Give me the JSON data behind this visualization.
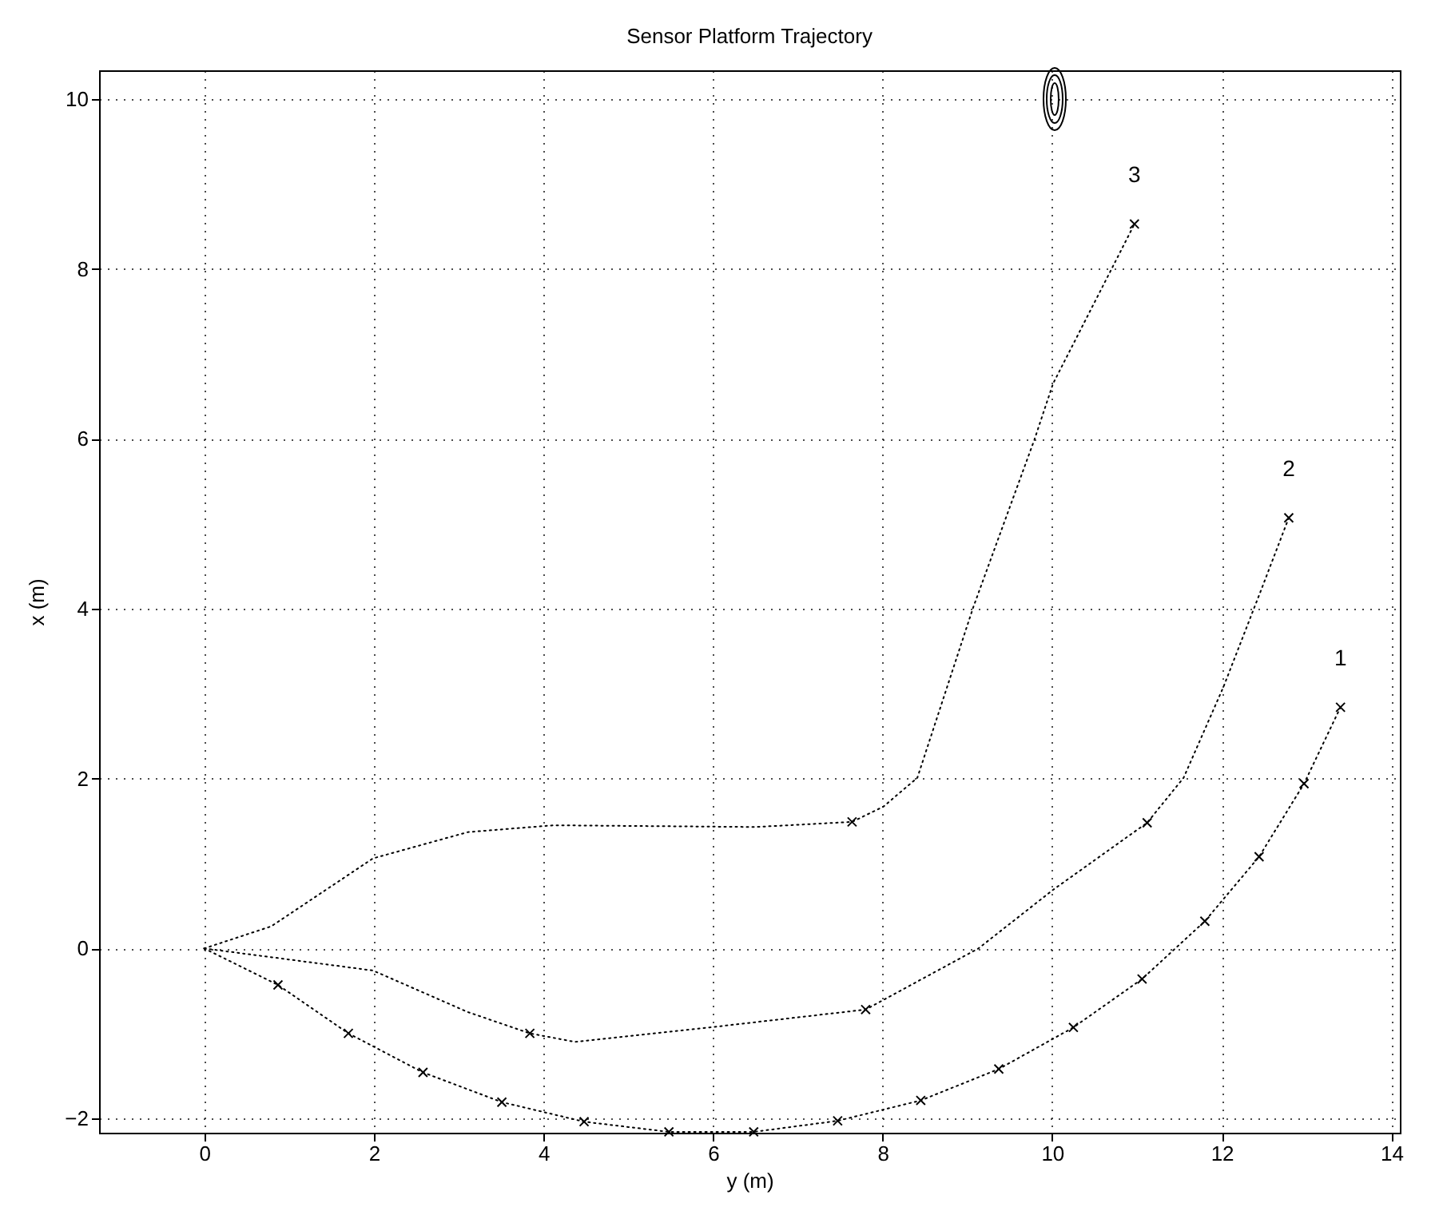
{
  "chart_data": {
    "type": "line",
    "title": "Sensor Platform Trajectory",
    "xlabel": "y (m)",
    "ylabel": "x (m)",
    "xlim": [
      -1.24,
      14.1
    ],
    "ylim": [
      -2.17,
      10.34
    ],
    "xticks": [
      0,
      2,
      4,
      6,
      8,
      10,
      12,
      14
    ],
    "yticks": [
      -2,
      0,
      2,
      4,
      6,
      8,
      10
    ],
    "grid": true,
    "series": [
      {
        "type": "line",
        "name": "1",
        "color": "#000000",
        "line_style": "dotted",
        "marker": "none",
        "x": [
          0,
          0.87,
          1.7,
          2.58,
          3.51,
          4.48,
          5.48,
          6.48,
          7.47,
          8.45,
          9.37,
          10.25,
          11.06,
          11.8,
          12.44,
          12.97,
          13.4
        ],
        "values": [
          0,
          -0.43,
          -1.0,
          -1.46,
          -1.81,
          -2.04,
          -2.16,
          -2.16,
          -2.03,
          -1.79,
          -1.42,
          -0.93,
          -0.36,
          0.32,
          1.08,
          1.94,
          2.84
        ]
      },
      {
        "type": "line",
        "name": "2",
        "color": "#000000",
        "line_style": "dotted",
        "marker": "none",
        "x": [
          0,
          1.99,
          3.11,
          3.84,
          4.37,
          5.96,
          7.8,
          9.13,
          10.01,
          11.12,
          11.55,
          12.02,
          12.46,
          12.79
        ],
        "values": [
          0,
          -0.26,
          -0.75,
          -1.0,
          -1.1,
          -0.93,
          -0.72,
          0.0,
          0.69,
          1.48,
          2.01,
          3.08,
          4.21,
          5.07
        ]
      },
      {
        "type": "line",
        "name": "3",
        "color": "#000000",
        "line_style": "dotted",
        "marker": "none",
        "x": [
          0,
          0.79,
          1.99,
          3.11,
          4.12,
          6.5,
          7.64,
          8.01,
          8.41,
          9.07,
          9.79,
          10.01,
          10.7,
          10.97
        ],
        "values": [
          0,
          0.26,
          1.06,
          1.37,
          1.45,
          1.43,
          1.49,
          1.67,
          2.01,
          4.02,
          5.99,
          6.65,
          8.0,
          8.53
        ]
      },
      {
        "type": "scatter",
        "color": "#000000",
        "marker": "cross",
        "x": [
          0.87,
          1.7,
          2.58,
          3.51,
          4.48,
          5.48,
          6.48,
          7.47,
          8.45,
          9.37,
          10.25,
          11.06,
          11.8,
          12.44,
          12.97,
          13.4,
          3.84,
          7.8,
          11.12,
          12.79,
          7.64,
          10.97
        ],
        "values": [
          -0.43,
          -1.0,
          -1.46,
          -1.81,
          -2.04,
          -2.16,
          -2.16,
          -2.03,
          -1.79,
          -1.42,
          -0.93,
          -0.36,
          0.32,
          1.08,
          1.94,
          2.84,
          -1.0,
          -0.72,
          1.48,
          5.07,
          1.49,
          8.53
        ]
      }
    ]
  }
}
